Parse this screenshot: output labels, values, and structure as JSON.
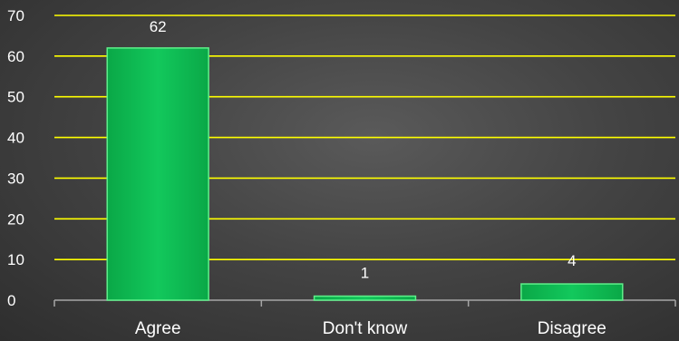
{
  "chart_data": {
    "type": "bar",
    "title": "",
    "xlabel": "",
    "ylabel": "",
    "categories": [
      "Agree",
      "Don't know",
      "Disagree"
    ],
    "values": [
      62,
      1,
      4
    ],
    "data_labels": [
      "62",
      "1",
      "4"
    ],
    "ylim": [
      0,
      70
    ],
    "yticks": [
      0,
      10,
      20,
      30,
      40,
      50,
      60,
      70
    ],
    "ytick_labels": [
      "0",
      "10",
      "20",
      "30",
      "40",
      "50",
      "60",
      "70"
    ],
    "grid": true,
    "legend": "none",
    "colors": {
      "bar": "#0fbf55",
      "bar_edge": "#5ff08a",
      "gridline": "#ffff00",
      "axis": "#a6a6a6",
      "text": "#ffffff"
    }
  }
}
